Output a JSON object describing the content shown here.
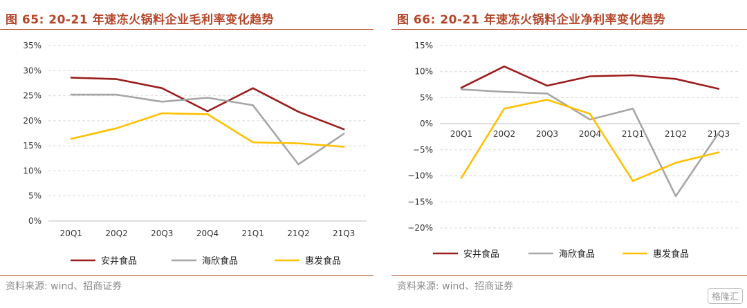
{
  "colors": {
    "anjing": "#9b1c1c",
    "haixin": "#a6a6a6",
    "huifa": "#ffc000",
    "title": "#b5462a",
    "grid": "#d9d9d9"
  },
  "left": {
    "title": "图 65:  20-21 年速冻火锅料企业毛利率变化趋势",
    "source": "资料来源:  wind、招商证券"
  },
  "right": {
    "title": "图 66:  20-21 年速冻火锅料企业净利率变化趋势",
    "source": "资料来源:  wind、招商证券"
  },
  "watermark": "格隆汇",
  "chart_data": [
    {
      "type": "line",
      "title": "20-21 年速冻火锅料企业毛利率变化趋势",
      "categories": [
        "20Q1",
        "20Q2",
        "20Q3",
        "20Q4",
        "21Q1",
        "21Q2",
        "21Q3"
      ],
      "yticks": [
        "0%",
        "5%",
        "10%",
        "15%",
        "20%",
        "25%",
        "30%",
        "35%"
      ],
      "ylim": [
        0,
        35
      ],
      "y_unit": "%",
      "grid": true,
      "legend": "bottom",
      "series": [
        {
          "name": "安井食品",
          "color": "#9b1c1c",
          "values": [
            28.6,
            28.3,
            26.5,
            21.9,
            26.5,
            21.8,
            18.3
          ]
        },
        {
          "name": "海欣食品",
          "color": "#a6a6a6",
          "values": [
            25.2,
            25.2,
            23.8,
            24.6,
            23.1,
            11.3,
            17.4
          ]
        },
        {
          "name": "惠发食品",
          "color": "#ffc000",
          "values": [
            16.4,
            18.5,
            21.5,
            21.3,
            15.7,
            15.5,
            14.8
          ]
        }
      ]
    },
    {
      "type": "line",
      "title": "20-21 年速冻火锅料企业净利率变化趋势",
      "categories": [
        "20Q1",
        "20Q2",
        "20Q3",
        "20Q4",
        "21Q1",
        "21Q2",
        "21Q3"
      ],
      "yticks": [
        "−20%",
        "−15%",
        "−10%",
        "−5%",
        "0%",
        "5%",
        "10%",
        "15%"
      ],
      "ylim": [
        -20,
        15
      ],
      "y_unit": "%",
      "grid": true,
      "legend": "bottom",
      "series": [
        {
          "name": "安井食品",
          "color": "#9b1c1c",
          "values": [
            6.9,
            11.0,
            7.3,
            9.1,
            9.3,
            8.6,
            6.7
          ]
        },
        {
          "name": "海欣食品",
          "color": "#a6a6a6",
          "values": [
            6.6,
            6.1,
            5.8,
            0.8,
            2.9,
            -13.9,
            -1.8
          ]
        },
        {
          "name": "惠发食品",
          "color": "#ffc000",
          "values": [
            -10.4,
            2.9,
            4.6,
            1.9,
            -11.0,
            -7.5,
            -5.5
          ]
        }
      ]
    }
  ]
}
